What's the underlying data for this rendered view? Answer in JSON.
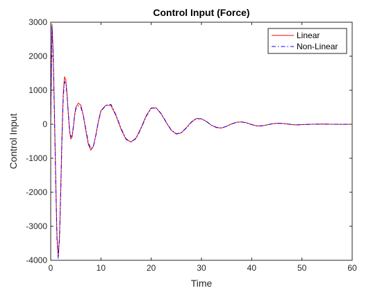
{
  "chart_data": {
    "type": "line",
    "title": "Control Input (Force)",
    "xlabel": "Time",
    "ylabel": "Control Input",
    "xlim": [
      0,
      60
    ],
    "ylim": [
      -4000,
      3000
    ],
    "xticks": [
      0,
      10,
      20,
      30,
      40,
      50,
      60
    ],
    "yticks": [
      -4000,
      -3000,
      -2000,
      -1000,
      0,
      1000,
      2000,
      3000
    ],
    "grid": false,
    "legend_position": "top-right",
    "series": [
      {
        "name": "Linear",
        "color": "#ff0000",
        "line_style": "solid",
        "x": [
          0,
          0.25,
          0.5,
          0.75,
          1.0,
          1.25,
          1.5,
          1.75,
          2.0,
          2.25,
          2.5,
          2.75,
          3.0,
          3.25,
          3.5,
          3.75,
          4.0,
          4.25,
          4.5,
          4.75,
          5.0,
          5.5,
          6.0,
          6.5,
          7.0,
          7.5,
          8.0,
          8.5,
          9.0,
          9.5,
          10.0,
          11.0,
          12.0,
          13.0,
          14.0,
          15.0,
          16.0,
          17.0,
          18.0,
          19.0,
          20.0,
          21.0,
          22.0,
          23.0,
          24.0,
          25.0,
          26.0,
          27.0,
          28.0,
          29.0,
          30.0,
          31.0,
          32.0,
          33.0,
          34.0,
          35.0,
          36.0,
          37.0,
          38.0,
          39.0,
          40.0,
          41.0,
          42.0,
          43.0,
          44.0,
          45.0,
          46.0,
          47.0,
          48.0,
          49.0,
          50.0,
          52.0,
          54.0,
          56.0,
          58.0,
          60.0
        ],
        "y": [
          0,
          2950,
          2100,
          300,
          -1600,
          -3300,
          -3900,
          -3300,
          -1900,
          -300,
          900,
          1400,
          1300,
          900,
          300,
          -200,
          -430,
          -380,
          -100,
          250,
          500,
          620,
          560,
          250,
          -200,
          -600,
          -760,
          -650,
          -300,
          100,
          400,
          560,
          550,
          250,
          -150,
          -450,
          -520,
          -400,
          -100,
          250,
          480,
          480,
          300,
          50,
          -180,
          -290,
          -250,
          -100,
          70,
          170,
          160,
          80,
          -30,
          -100,
          -110,
          -60,
          10,
          60,
          70,
          40,
          -10,
          -50,
          -50,
          -20,
          10,
          30,
          25,
          10,
          -10,
          -20,
          -10,
          0,
          5,
          0,
          -3,
          0
        ]
      },
      {
        "name": "Non-Linear",
        "color": "#0000ff",
        "line_style": "dash-dot",
        "x": [
          0,
          0.25,
          0.5,
          0.75,
          1.0,
          1.25,
          1.5,
          1.75,
          2.0,
          2.25,
          2.5,
          2.75,
          3.0,
          3.25,
          3.5,
          3.75,
          4.0,
          4.25,
          4.5,
          4.75,
          5.0,
          5.5,
          6.0,
          6.5,
          7.0,
          7.5,
          8.0,
          8.5,
          9.0,
          9.5,
          10.0,
          11.0,
          12.0,
          13.0,
          14.0,
          15.0,
          16.0,
          17.0,
          18.0,
          19.0,
          20.0,
          21.0,
          22.0,
          23.0,
          24.0,
          25.0,
          26.0,
          27.0,
          28.0,
          29.0,
          30.0,
          31.0,
          32.0,
          33.0,
          34.0,
          35.0,
          36.0,
          37.0,
          38.0,
          39.0,
          40.0,
          41.0,
          42.0,
          43.0,
          44.0,
          45.0,
          46.0,
          47.0,
          48.0,
          49.0,
          50.0,
          52.0,
          54.0,
          56.0,
          58.0,
          60.0
        ],
        "y": [
          0,
          2900,
          2000,
          200,
          -1700,
          -3400,
          -3950,
          -3350,
          -2000,
          -400,
          800,
          1250,
          1200,
          850,
          350,
          -150,
          -370,
          -330,
          -80,
          250,
          450,
          540,
          500,
          250,
          -150,
          -550,
          -720,
          -640,
          -320,
          80,
          380,
          560,
          580,
          270,
          -120,
          -430,
          -520,
          -420,
          -120,
          230,
          470,
          480,
          310,
          60,
          -170,
          -280,
          -250,
          -110,
          60,
          160,
          160,
          80,
          -30,
          -90,
          -110,
          -60,
          10,
          55,
          65,
          40,
          -10,
          -45,
          -45,
          -20,
          10,
          28,
          22,
          8,
          -8,
          -18,
          -8,
          0,
          4,
          0,
          -2,
          0
        ]
      }
    ]
  }
}
